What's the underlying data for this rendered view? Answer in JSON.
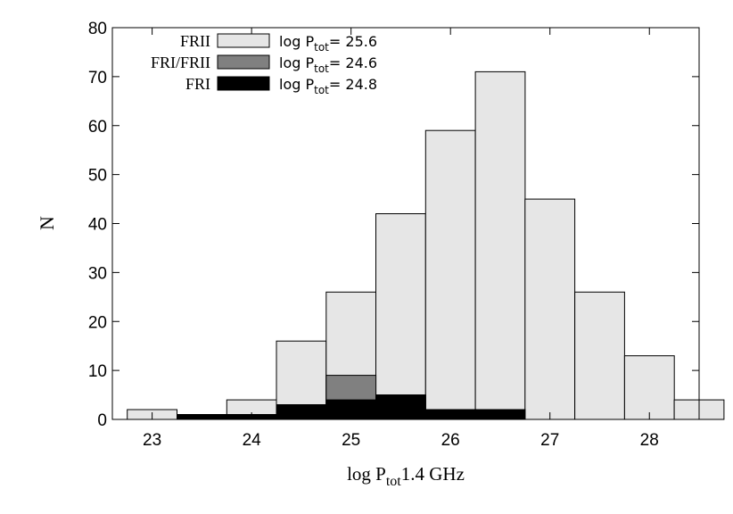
{
  "chart_data": {
    "type": "bar",
    "title": "",
    "xlabel": {
      "prefix": "log P",
      "sub": "tot",
      "suffix": "1.4 GHz"
    },
    "ylabel": "N",
    "xlim": [
      22.6,
      28.5
    ],
    "ylim": [
      0,
      80
    ],
    "xticks": [
      23,
      24,
      25,
      26,
      27,
      28
    ],
    "yticks": [
      0,
      10,
      20,
      30,
      40,
      50,
      60,
      70,
      80
    ],
    "bin_width": 0.5,
    "bin_left_edges": [
      22.75,
      23.25,
      23.75,
      24.25,
      24.75,
      25.25,
      25.75,
      26.25,
      26.75,
      27.25,
      27.75,
      28.25
    ],
    "series": [
      {
        "name": "FRII",
        "label": {
          "prefix": "log P",
          "sub": "tot",
          "suffix": "= 25.6"
        },
        "color": "#e6e6e6",
        "values": [
          2,
          1,
          4,
          16,
          26,
          42,
          59,
          71,
          45,
          26,
          13,
          4
        ],
        "bin_shift": 0
      },
      {
        "name": "FRI/FRII",
        "label": {
          "prefix": "log P",
          "sub": "tot",
          "suffix": "= 24.6"
        },
        "color": "#808080",
        "values": [
          0,
          0,
          0,
          0,
          9,
          5,
          2,
          0,
          0,
          0,
          0,
          0
        ],
        "bin_shift": 0
      },
      {
        "name": "FRI",
        "label": {
          "prefix": "log P",
          "sub": "tot",
          "suffix": "= 24.8"
        },
        "color": "#000000",
        "values": [
          0,
          1,
          1,
          3,
          4,
          5,
          2,
          2,
          0,
          0,
          0,
          0
        ],
        "bin_shift": 0
      }
    ],
    "frii_bins": [
      {
        "x0": 22.75,
        "v": 2
      },
      {
        "x0": 23.25,
        "v": 1
      },
      {
        "x0": 23.75,
        "v": 4
      },
      {
        "x0": 24.25,
        "v": 16
      },
      {
        "x0": 24.75,
        "v": 26
      },
      {
        "x0": 25.25,
        "v": 42
      },
      {
        "x0": 25.75,
        "v": 59
      },
      {
        "x0": 26.25,
        "v": 71
      },
      {
        "x0": 26.75,
        "v": 45
      },
      {
        "x0": 27.25,
        "v": 26
      },
      {
        "x0": 27.75,
        "v": 13
      },
      {
        "x0": 28.25,
        "v": 4
      }
    ],
    "grid": false,
    "legend_position": "top-left"
  }
}
